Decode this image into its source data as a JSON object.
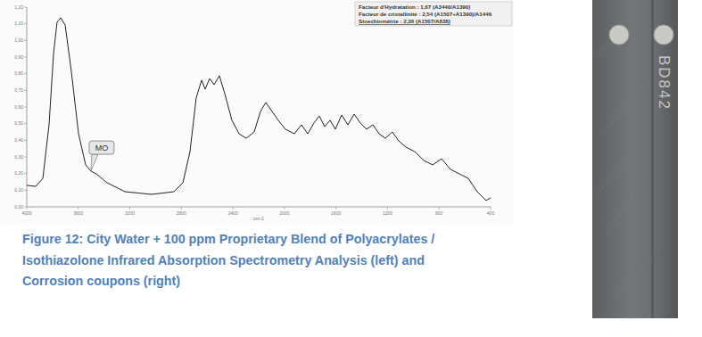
{
  "chart_data": {
    "type": "line",
    "color": "#222222",
    "x_label": "cm-1",
    "x": [
      4000,
      3931,
      3875,
      3827,
      3792,
      3765,
      3737,
      3702,
      3654,
      3598,
      3543,
      3502,
      3460,
      3377,
      3238,
      3031,
      2858,
      2788,
      2733,
      2685,
      2643,
      2615,
      2581,
      2546,
      2505,
      2463,
      2408,
      2352,
      2297,
      2235,
      2186,
      2145,
      2096,
      2048,
      1992,
      1923,
      1868,
      1819,
      1771,
      1729,
      1688,
      1646,
      1605,
      1556,
      1508,
      1459,
      1411,
      1362,
      1314,
      1265,
      1217,
      1162,
      1113,
      1058,
      989,
      919,
      850,
      781,
      711,
      642,
      573,
      504,
      435,
      400
    ],
    "values": [
      0.129,
      0.123,
      0.171,
      0.493,
      0.921,
      1.109,
      1.136,
      1.093,
      0.814,
      0.439,
      0.252,
      0.214,
      0.198,
      0.145,
      0.091,
      0.075,
      0.091,
      0.145,
      0.332,
      0.654,
      0.761,
      0.707,
      0.771,
      0.734,
      0.788,
      0.68,
      0.52,
      0.439,
      0.412,
      0.45,
      0.573,
      0.627,
      0.573,
      0.52,
      0.466,
      0.439,
      0.493,
      0.439,
      0.504,
      0.546,
      0.482,
      0.52,
      0.466,
      0.552,
      0.493,
      0.557,
      0.504,
      0.466,
      0.493,
      0.439,
      0.412,
      0.45,
      0.396,
      0.359,
      0.332,
      0.279,
      0.252,
      0.289,
      0.225,
      0.198,
      0.171,
      0.091,
      0.038,
      0.054
    ],
    "xlim": [
      4000,
      400
    ],
    "xticks": [
      4000,
      3600,
      3200,
      2800,
      2400,
      2000,
      1600,
      1200,
      800,
      400
    ],
    "ylim": [
      0,
      1.2
    ],
    "yticks": [
      {
        "value": 0,
        "label": "0,00"
      },
      {
        "value": 0.1,
        "label": "0,10"
      },
      {
        "value": 0.2,
        "label": "0,20"
      },
      {
        "value": 0.3,
        "label": "0,30"
      },
      {
        "value": 0.4,
        "label": "0,40"
      },
      {
        "value": 0.5,
        "label": "0,50"
      },
      {
        "value": 0.6,
        "label": "0,60"
      },
      {
        "value": 0.7,
        "label": "0,70"
      },
      {
        "value": 0.8,
        "label": "0,80"
      },
      {
        "value": 0.9,
        "label": "0,90"
      },
      {
        "value": 1,
        "label": "1,00"
      },
      {
        "value": 1.1,
        "label": "1,10"
      },
      {
        "value": 1.2,
        "label": "1,20"
      }
    ],
    "grid": false,
    "annotations": [
      {
        "text": "MO",
        "x": 3502,
        "y": 0.214
      }
    ],
    "info_box": [
      "Facteur d'Hydratation : 1,67 (A3440/A1390)",
      "Facteur de cristallinité : 2,54 (A1507+A1390)/A1446",
      "Stoechiométrie : 2,30 (A1507/A838)"
    ]
  },
  "caption": [
    "Figure 12: City Water + 100 ppm Proprietary Blend of Polyacrylates /",
    "Isothiazolone Infrared Absorption Spectrometry Analysis (left) and",
    "Corrosion coupons (right)"
  ],
  "photo": {
    "label": "BD842"
  }
}
